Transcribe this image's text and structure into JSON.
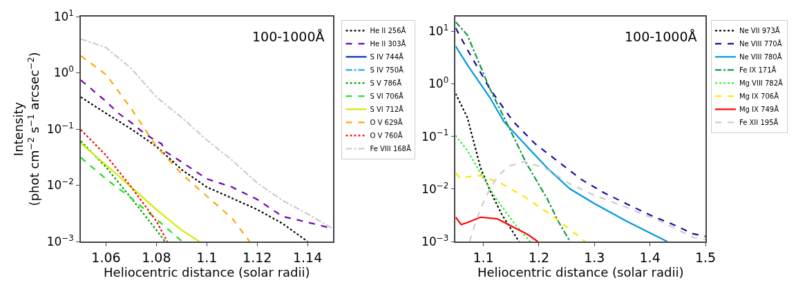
{
  "chart_data": [
    {
      "type": "line",
      "xlabel": "Heliocentric distance (solar radii)",
      "ylabel": "Intensity\n(phot cm$^{−2}$ s$^{−1}$ arcsec$^{−2}$)",
      "annotations": [
        "100-1000Å"
      ],
      "log": "y",
      "legend": "right",
      "xlim": [
        1.05,
        1.15
      ],
      "xticks": [
        1.06,
        1.08,
        1.1,
        1.12,
        1.14
      ],
      "ylim": [
        0.001,
        10
      ],
      "yticks": [
        {
          "value": 0.001,
          "label": "10$^{−3}$"
        },
        {
          "value": 0.01,
          "label": "10$^{−2}$"
        },
        {
          "value": 0.1,
          "label": "10$^{−1}$"
        },
        {
          "value": 1,
          "label": "10$^{0}$"
        },
        {
          "value": 10,
          "label": "10$^{1}$"
        }
      ],
      "series": [
        {
          "name": "He II 256Å",
          "color": "#000000",
          "line_style": "dotted",
          "x": [
            1.05,
            1.06,
            1.07,
            1.08,
            1.083,
            1.09,
            1.1,
            1.11,
            1.12,
            1.13,
            1.14
          ],
          "values": [
            0.37,
            0.19,
            0.1,
            0.049,
            0.037,
            0.019,
            0.0093,
            0.0059,
            0.0037,
            0.0021,
            0.001
          ]
        },
        {
          "name": "He II 303Å",
          "color": "#7000a8",
          "line_style": "dashed",
          "x": [
            1.05,
            1.06,
            1.065,
            1.07,
            1.075,
            1.08,
            1.082,
            1.0835,
            1.09,
            1.1,
            1.11,
            1.12,
            1.13,
            1.14,
            1.15
          ],
          "values": [
            0.74,
            0.31,
            0.19,
            0.13,
            0.085,
            0.061,
            0.055,
            0.04,
            0.026,
            0.013,
            0.0093,
            0.0056,
            0.0028,
            0.0022,
            0.0017
          ]
        },
        {
          "name": "S IV 744Å",
          "color": "#0033cc",
          "line_style": "solid"
        },
        {
          "name": "S IV 750Å",
          "color": "#17b0d0",
          "line_style": "dashdot"
        },
        {
          "name": "S V 786Å",
          "color": "#00a000",
          "line_style": "dotted",
          "x": [
            1.05,
            1.06,
            1.07,
            1.08,
            1.0834
          ],
          "values": [
            0.061,
            0.021,
            0.0059,
            0.0016,
            0.001
          ]
        },
        {
          "name": "S VI 706Å",
          "color": "#22dd22",
          "line_style": "dashed",
          "x": [
            1.05,
            1.06,
            1.07,
            1.08,
            1.0902
          ],
          "values": [
            0.031,
            0.013,
            0.0059,
            0.0025,
            0.001
          ]
        },
        {
          "name": "S VI 712Å",
          "color": "#ccee00",
          "line_style": "solid",
          "x": [
            1.05,
            1.06,
            1.07,
            1.08,
            1.09,
            1.097
          ],
          "values": [
            0.056,
            0.023,
            0.0093,
            0.0037,
            0.0016,
            0.001
          ]
        },
        {
          "name": "O V 629Å",
          "color": "#ffa500",
          "line_style": "dashed",
          "x": [
            1.05,
            1.06,
            1.07,
            1.08,
            1.09,
            1.1,
            1.11,
            1.117
          ],
          "values": [
            2.0,
            0.93,
            0.23,
            0.049,
            0.016,
            0.0064,
            0.0026,
            0.001
          ]
        },
        {
          "name": "O V 760Å",
          "color": "#ff0000",
          "line_style": "dotted",
          "x": [
            1.05,
            1.06,
            1.07,
            1.08,
            1.0843
          ],
          "values": [
            0.097,
            0.034,
            0.0093,
            0.0023,
            0.001
          ]
        },
        {
          "name": "Fe VIII 168Å",
          "color": "#cccccc",
          "line_style": "dashdot",
          "x": [
            1.05,
            1.06,
            1.07,
            1.08,
            1.09,
            1.1,
            1.11,
            1.12,
            1.13,
            1.14,
            1.15
          ],
          "values": [
            4.0,
            2.8,
            1.2,
            0.37,
            0.16,
            0.064,
            0.028,
            0.011,
            0.0054,
            0.0031,
            0.0017
          ]
        }
      ]
    },
    {
      "type": "line",
      "xlabel": "Heliocentric distance (solar radii)",
      "annotations": [
        "100-1000Å"
      ],
      "log": "y",
      "legend": "right",
      "xlim": [
        1.05,
        1.5
      ],
      "xticks": [
        1.1,
        1.2,
        1.3,
        1.4,
        1.5
      ],
      "ylim": [
        0.001,
        19
      ],
      "yticks": [
        {
          "value": 0.001,
          "label": "10$^{−3}$"
        },
        {
          "value": 0.01,
          "label": "10$^{−2}$"
        },
        {
          "value": 0.1,
          "label": "10$^{−1}$"
        },
        {
          "value": 1,
          "label": "10$^{0}$"
        },
        {
          "value": 10,
          "label": "10$^{1}$"
        }
      ],
      "series": [
        {
          "name": "Ne VII 973Å",
          "color": "#000000",
          "line_style": "dotted",
          "x": [
            1.05,
            1.071,
            1.095,
            1.112,
            1.133,
            1.164
          ],
          "values": [
            0.65,
            0.23,
            0.025,
            0.0093,
            0.0033,
            0.001
          ]
        },
        {
          "name": "Ne VIII 770Å",
          "color": "#1a0a9a",
          "line_style": "dashed",
          "x": [
            1.05,
            1.071,
            1.112,
            1.154,
            1.194,
            1.235,
            1.277,
            1.317,
            1.358,
            1.4,
            1.442,
            1.478,
            1.5
          ],
          "values": [
            11.5,
            4.5,
            0.79,
            0.19,
            0.071,
            0.033,
            0.015,
            0.0085,
            0.0052,
            0.0032,
            0.0021,
            0.0014,
            0.00125
          ]
        },
        {
          "name": "Ne VIII 780Å",
          "color": "#0099dd",
          "line_style": "solid",
          "x": [
            1.05,
            1.071,
            1.112,
            1.137,
            1.178,
            1.215,
            1.256,
            1.301,
            1.359,
            1.431
          ],
          "values": [
            5.2,
            2.3,
            0.54,
            0.19,
            0.065,
            0.025,
            0.01,
            0.0052,
            0.0024,
            0.001
          ]
        },
        {
          "name": "Fe IX 171Å",
          "color": "#119944",
          "line_style": "dashdot",
          "x": [
            1.05,
            1.071,
            1.112,
            1.145,
            1.178,
            1.215,
            1.235,
            1.256
          ],
          "values": [
            15,
            8.5,
            0.79,
            0.155,
            0.03,
            0.0065,
            0.0024,
            0.001
          ]
        },
        {
          "name": "Mg VIII 782Å",
          "color": "#33ee33",
          "line_style": "dotted",
          "x": [
            1.05,
            1.071,
            1.095,
            1.121,
            1.153,
            1.184
          ],
          "values": [
            0.104,
            0.054,
            0.02,
            0.007,
            0.0024,
            0.001
          ]
        },
        {
          "name": "Mg IX 706Å",
          "color": "#ffe600",
          "line_style": "dashed",
          "x": [
            1.05,
            1.06,
            1.071,
            1.095,
            1.133,
            1.174,
            1.215,
            1.256,
            1.283
          ],
          "values": [
            0.02,
            0.0155,
            0.017,
            0.018,
            0.0126,
            0.0071,
            0.0036,
            0.0017,
            0.001
          ]
        },
        {
          "name": "Mg IX 749Å",
          "color": "#ff0000",
          "line_style": "solid",
          "x": [
            1.05,
            1.06,
            1.071,
            1.095,
            1.125,
            1.153,
            1.178,
            1.198
          ],
          "values": [
            0.0029,
            0.0021,
            0.0023,
            0.0029,
            0.0027,
            0.0019,
            0.0014,
            0.001
          ]
        },
        {
          "name": "Fe XII 195Å",
          "color": "#cccccc",
          "line_style": "dashed",
          "x": [
            1.075,
            1.088,
            1.104,
            1.125,
            1.145,
            1.174,
            1.211,
            1.256,
            1.297,
            1.359,
            1.42,
            1.478,
            1.5
          ],
          "values": [
            0.001,
            0.0027,
            0.007,
            0.017,
            0.027,
            0.033,
            0.025,
            0.0125,
            0.0078,
            0.0044,
            0.0024,
            0.0012,
            0.0011
          ]
        }
      ]
    }
  ]
}
